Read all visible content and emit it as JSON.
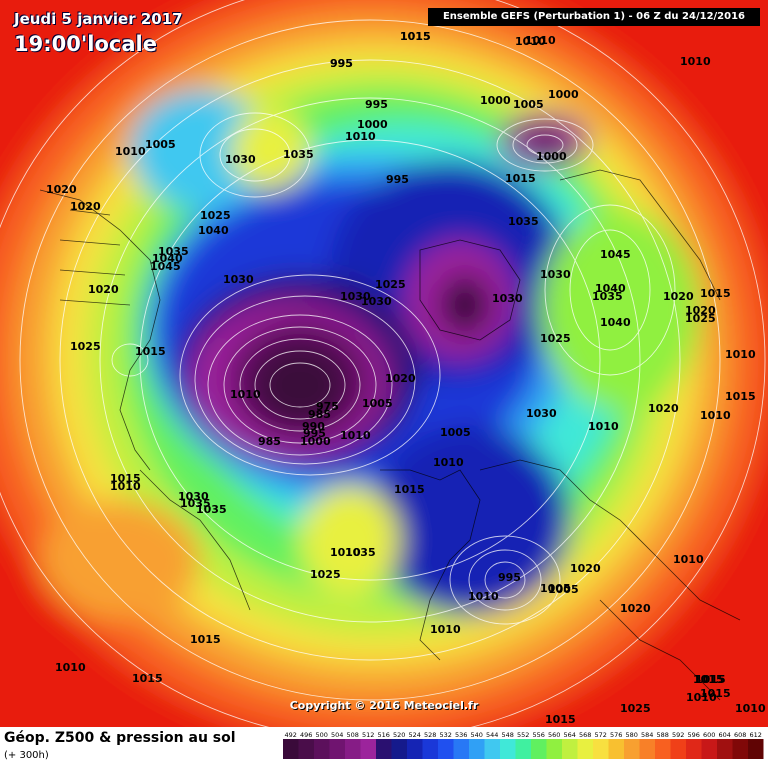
{
  "header": {
    "date": "Jeudi 5 janvier 2017",
    "time": "19:00'locale",
    "run": "Ensemble GEFS  (Perturbation 1)  -  06 Z du 24/12/2016"
  },
  "copyright": "Copyright © 2016 Meteociel.fr",
  "footer": {
    "title": "Géop. Z500 & pression au sol",
    "subtitle": "(+ 300h)"
  },
  "scale": {
    "values": [
      "492",
      "496",
      "500",
      "504",
      "508",
      "512",
      "516",
      "520",
      "524",
      "528",
      "532",
      "536",
      "540",
      "544",
      "548",
      "552",
      "556",
      "560",
      "564",
      "568",
      "572",
      "576",
      "580",
      "584",
      "588",
      "592",
      "596",
      "600",
      "604",
      "608",
      "612"
    ],
    "colors": [
      "#3a0a3a",
      "#4a0d4a",
      "#5c105c",
      "#701470",
      "#861c86",
      "#9c249c",
      "#2a1070",
      "#151a8c",
      "#1524b4",
      "#1a38d8",
      "#2050ef",
      "#2878f5",
      "#30a0f5",
      "#40c8f0",
      "#40e8d8",
      "#40f0a0",
      "#60f060",
      "#90f040",
      "#c0f040",
      "#e8f040",
      "#f8e040",
      "#f8c030",
      "#f8a030",
      "#f88028",
      "#f86020",
      "#f04018",
      "#e02818",
      "#c81818",
      "#a01010",
      "#800808",
      "#600404"
    ]
  },
  "pressure_labels": [
    {
      "t": "1015"
    },
    {
      "t": "1010"
    },
    {
      "t": "1010"
    },
    {
      "t": "995"
    },
    {
      "t": "995"
    },
    {
      "t": "1000"
    },
    {
      "t": "1010"
    },
    {
      "t": "1000"
    },
    {
      "t": "1005"
    },
    {
      "t": "1000"
    },
    {
      "t": "1000"
    },
    {
      "t": "1010"
    },
    {
      "t": "1015"
    },
    {
      "t": "1005"
    },
    {
      "t": "1030"
    },
    {
      "t": "1035"
    },
    {
      "t": "995"
    },
    {
      "t": "1015"
    },
    {
      "t": "1020"
    },
    {
      "t": "1020"
    },
    {
      "t": "1025"
    },
    {
      "t": "1040"
    },
    {
      "t": "1035"
    },
    {
      "t": "1040"
    },
    {
      "t": "1045"
    },
    {
      "t": "1035"
    },
    {
      "t": "1030"
    },
    {
      "t": "1045"
    },
    {
      "t": "1020"
    },
    {
      "t": "1030"
    },
    {
      "t": "1030"
    },
    {
      "t": "1025"
    },
    {
      "t": "1030"
    },
    {
      "t": "1030"
    },
    {
      "t": "1040"
    },
    {
      "t": "1035"
    },
    {
      "t": "1015"
    },
    {
      "t": "1020"
    },
    {
      "t": "1025"
    },
    {
      "t": "1025"
    },
    {
      "t": "1015"
    },
    {
      "t": "1040"
    },
    {
      "t": "1010"
    },
    {
      "t": "1025"
    },
    {
      "t": "1020"
    },
    {
      "t": "1020"
    },
    {
      "t": "1015"
    },
    {
      "t": "1010"
    },
    {
      "t": "1010"
    },
    {
      "t": "985"
    },
    {
      "t": "985"
    },
    {
      "t": "975"
    },
    {
      "t": "990"
    },
    {
      "t": "995"
    },
    {
      "t": "1000"
    },
    {
      "t": "1010"
    },
    {
      "t": "1005"
    },
    {
      "t": "1005"
    },
    {
      "t": "1030"
    },
    {
      "t": "1020"
    },
    {
      "t": "1010"
    },
    {
      "t": "1010"
    },
    {
      "t": "1010"
    },
    {
      "t": "1015"
    },
    {
      "t": "1015"
    },
    {
      "t": "1030"
    },
    {
      "t": "1035"
    },
    {
      "t": "1035"
    },
    {
      "t": "1010"
    },
    {
      "t": "1035"
    },
    {
      "t": "1025"
    },
    {
      "t": "1010"
    },
    {
      "t": "995"
    },
    {
      "t": "1005"
    },
    {
      "t": "1010"
    },
    {
      "t": "1020"
    },
    {
      "t": "1005"
    },
    {
      "t": "1020"
    },
    {
      "t": "1010"
    },
    {
      "t": "1015"
    },
    {
      "t": "1010"
    },
    {
      "t": "1015"
    },
    {
      "t": "1025"
    },
    {
      "t": "1015"
    },
    {
      "t": "1010"
    },
    {
      "t": "1010"
    },
    {
      "t": "1010"
    },
    {
      "t": "1015"
    },
    {
      "t": "1015"
    },
    {
      "t": "1015"
    }
  ]
}
